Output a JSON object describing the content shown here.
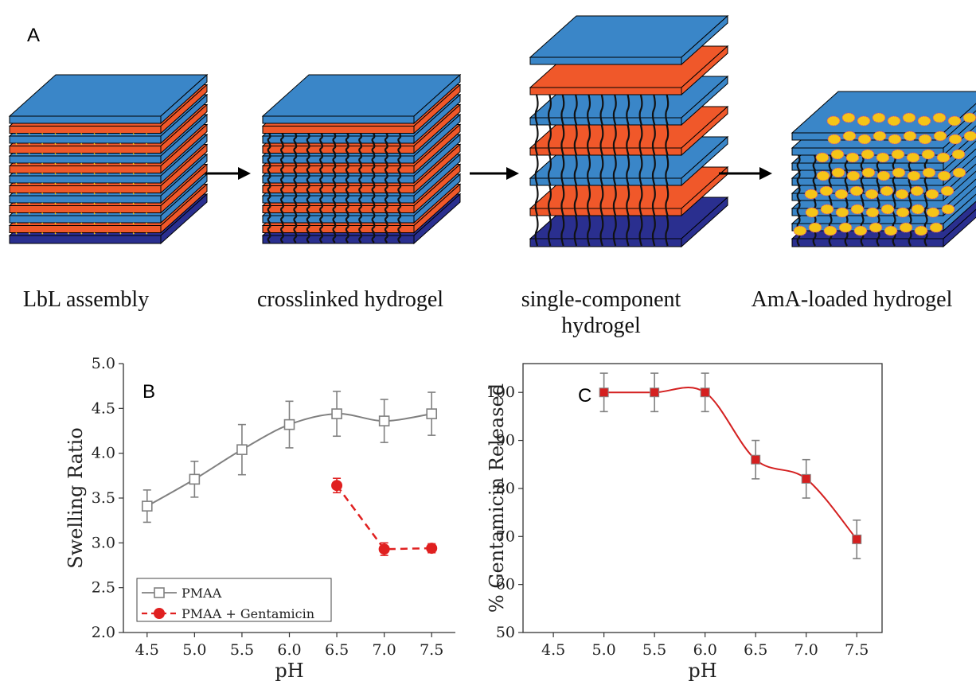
{
  "panel_a": {
    "letter": "A",
    "stages": [
      {
        "label_lines": [
          "LbL assembly"
        ]
      },
      {
        "label_lines": [
          "crosslinked hydrogel"
        ]
      },
      {
        "label_lines": [
          "single-component",
          "hydrogel"
        ]
      },
      {
        "label_lines": [
          "AmA-loaded hydrogel"
        ]
      }
    ],
    "colors": {
      "top": "#3a86c8",
      "orange": "#f0582a",
      "base": "#2a2f8f",
      "linker": "#111111",
      "particle": "#f5c518"
    }
  },
  "chart_data": [
    {
      "type": "line",
      "panel": "B",
      "xlabel": "pH",
      "ylabel": "Swelling Ratio",
      "xlim": [
        4.25,
        7.75
      ],
      "ylim": [
        2.0,
        5.0
      ],
      "x_ticks": [
        "4.5",
        "5.0",
        "5.5",
        "6.0",
        "6.5",
        "7.0",
        "7.5"
      ],
      "y_ticks": [
        "2.0",
        "2.5",
        "3.0",
        "3.5",
        "4.0",
        "4.5",
        "5.0"
      ],
      "legend_position": "bottom-left",
      "series": [
        {
          "name": "PMAA",
          "color": "#808080",
          "marker": "open-square",
          "line": "smooth",
          "x": [
            4.5,
            5.0,
            5.5,
            6.0,
            6.5,
            7.0,
            7.5
          ],
          "y": [
            3.41,
            3.71,
            4.04,
            4.32,
            4.44,
            4.36,
            4.44
          ],
          "err": [
            0.18,
            0.2,
            0.28,
            0.26,
            0.25,
            0.24,
            0.24
          ]
        },
        {
          "name": "PMAA + Gentamicin",
          "color": "#e02020",
          "marker": "filled-circle",
          "line": "dashed",
          "x": [
            6.5,
            7.0,
            7.5
          ],
          "y": [
            3.64,
            2.93,
            2.94
          ],
          "err": [
            0.08,
            0.07,
            0.05
          ]
        }
      ]
    },
    {
      "type": "line",
      "panel": "C",
      "xlabel": "pH",
      "ylabel": "% Gentamicin Released",
      "xlim": [
        4.2,
        7.75
      ],
      "ylim": [
        50,
        106
      ],
      "x_ticks": [
        "4.5",
        "5.0",
        "5.5",
        "6.0",
        "6.5",
        "7.0",
        "7.5"
      ],
      "y_ticks": [
        "50",
        "60",
        "70",
        "80",
        "90",
        "100"
      ],
      "series": [
        {
          "color": "#d42020",
          "marker": "filled-square",
          "line": "smooth",
          "x": [
            5.0,
            5.5,
            6.0,
            6.5,
            7.0,
            7.5
          ],
          "y": [
            100,
            100,
            100,
            86,
            82,
            69.4
          ],
          "err": [
            4,
            4,
            4,
            4,
            4,
            4
          ]
        }
      ]
    }
  ]
}
